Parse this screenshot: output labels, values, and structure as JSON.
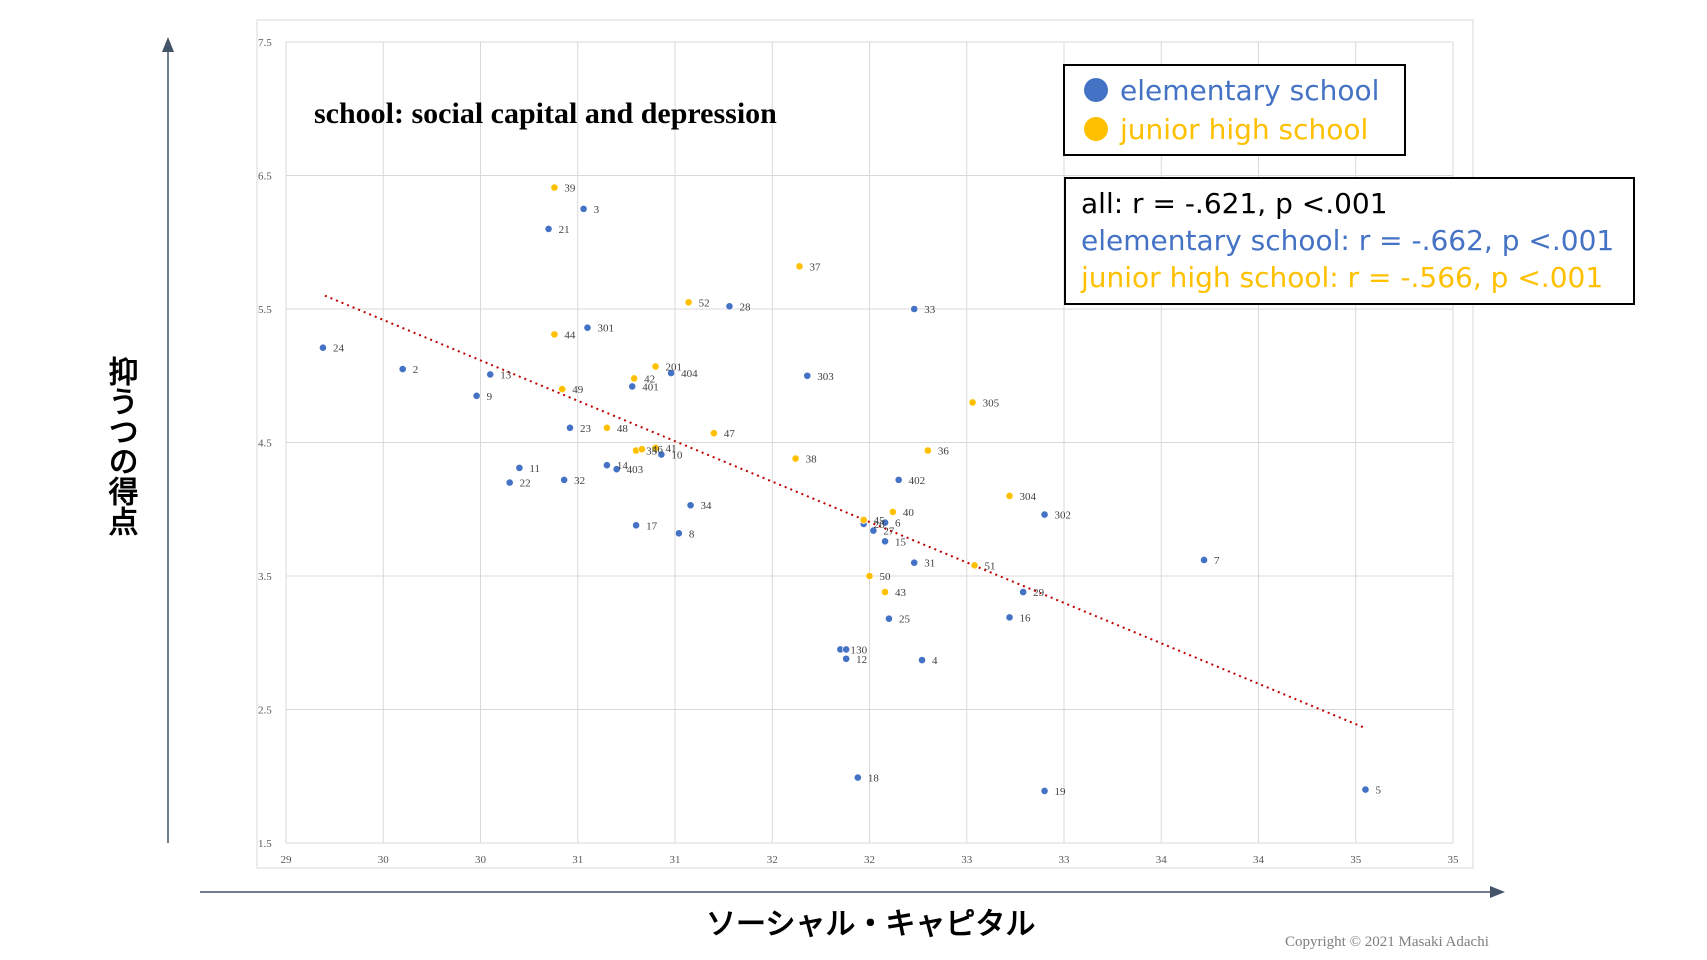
{
  "chart_data": {
    "type": "scatter",
    "title": "school: social capital and depression",
    "xlabel": "ソーシャル・キャピタル",
    "ylabel": "抑うつの得点",
    "x_tick_labels": [
      "29",
      "30",
      "30",
      "31",
      "31",
      "32",
      "32",
      "33",
      "33",
      "34",
      "34",
      "35",
      "35"
    ],
    "y_tick_labels": [
      "1.5",
      "2.5",
      "3.5",
      "4.5",
      "5.5",
      "6.5",
      "7.5"
    ],
    "xlim": [
      29,
      35
    ],
    "ylim": [
      1.5,
      7.5
    ],
    "grid": true,
    "legend_position": "top-right",
    "series": [
      {
        "name": "elementary school",
        "color": "#4472C4",
        "points": [
          {
            "label": "1",
            "x": 31.85,
            "y": 2.95
          },
          {
            "label": "2",
            "x": 29.6,
            "y": 5.05
          },
          {
            "label": "3",
            "x": 30.53,
            "y": 6.25
          },
          {
            "label": "4",
            "x": 32.27,
            "y": 2.87
          },
          {
            "label": "5",
            "x": 34.55,
            "y": 1.9
          },
          {
            "label": "6",
            "x": 32.08,
            "y": 3.9
          },
          {
            "label": "7",
            "x": 33.72,
            "y": 3.62
          },
          {
            "label": "8",
            "x": 31.02,
            "y": 3.82
          },
          {
            "label": "9",
            "x": 29.98,
            "y": 4.85
          },
          {
            "label": "10",
            "x": 30.93,
            "y": 4.41
          },
          {
            "label": "11",
            "x": 30.2,
            "y": 4.31
          },
          {
            "label": "12",
            "x": 31.88,
            "y": 2.88
          },
          {
            "label": "13",
            "x": 30.05,
            "y": 5.01
          },
          {
            "label": "14",
            "x": 30.65,
            "y": 4.33
          },
          {
            "label": "15",
            "x": 32.08,
            "y": 3.76
          },
          {
            "label": "16",
            "x": 32.72,
            "y": 3.19
          },
          {
            "label": "17",
            "x": 30.8,
            "y": 3.88
          },
          {
            "label": "18",
            "x": 31.94,
            "y": 1.99
          },
          {
            "label": "19",
            "x": 32.9,
            "y": 1.89
          },
          {
            "label": "21",
            "x": 30.35,
            "y": 6.1
          },
          {
            "label": "22",
            "x": 30.15,
            "y": 4.2
          },
          {
            "label": "23",
            "x": 30.46,
            "y": 4.61
          },
          {
            "label": "24",
            "x": 29.19,
            "y": 5.21
          },
          {
            "label": "25",
            "x": 32.1,
            "y": 3.18
          },
          {
            "label": "26",
            "x": 31.97,
            "y": 3.89
          },
          {
            "label": "27",
            "x": 32.02,
            "y": 3.84
          },
          {
            "label": "28",
            "x": 31.28,
            "y": 5.52
          },
          {
            "label": "29",
            "x": 32.79,
            "y": 3.38
          },
          {
            "label": "30",
            "x": 31.88,
            "y": 2.95
          },
          {
            "label": "31",
            "x": 32.23,
            "y": 3.6
          },
          {
            "label": "32",
            "x": 30.43,
            "y": 4.22
          },
          {
            "label": "33",
            "x": 32.23,
            "y": 5.5
          },
          {
            "label": "34",
            "x": 31.08,
            "y": 4.03
          },
          {
            "label": "301",
            "x": 30.55,
            "y": 5.36
          },
          {
            "label": "302",
            "x": 32.9,
            "y": 3.96
          },
          {
            "label": "303",
            "x": 31.68,
            "y": 5.0
          },
          {
            "label": "401",
            "x": 30.78,
            "y": 4.92
          },
          {
            "label": "402",
            "x": 32.15,
            "y": 4.22
          },
          {
            "label": "403",
            "x": 30.7,
            "y": 4.3
          },
          {
            "label": "404",
            "x": 30.98,
            "y": 5.02
          }
        ]
      },
      {
        "name": "junior high school",
        "color": "#FFC000",
        "points": [
          {
            "label": "35",
            "x": 30.8,
            "y": 4.44
          },
          {
            "label": "36",
            "x": 32.3,
            "y": 4.44
          },
          {
            "label": "37",
            "x": 31.64,
            "y": 5.82
          },
          {
            "label": "38",
            "x": 31.62,
            "y": 4.38
          },
          {
            "label": "39",
            "x": 30.38,
            "y": 6.41
          },
          {
            "label": "40",
            "x": 32.12,
            "y": 3.98
          },
          {
            "label": "41",
            "x": 30.9,
            "y": 4.46
          },
          {
            "label": "42",
            "x": 30.79,
            "y": 4.98
          },
          {
            "label": "43",
            "x": 32.08,
            "y": 3.38
          },
          {
            "label": "44",
            "x": 30.38,
            "y": 5.31
          },
          {
            "label": "45",
            "x": 31.97,
            "y": 3.92
          },
          {
            "label": "46",
            "x": 30.83,
            "y": 4.45
          },
          {
            "label": "47",
            "x": 31.2,
            "y": 4.57
          },
          {
            "label": "48",
            "x": 30.65,
            "y": 4.61
          },
          {
            "label": "49",
            "x": 30.42,
            "y": 4.9
          },
          {
            "label": "50",
            "x": 32.0,
            "y": 3.5
          },
          {
            "label": "51",
            "x": 32.54,
            "y": 3.58
          },
          {
            "label": "52",
            "x": 31.07,
            "y": 5.55
          },
          {
            "label": "201",
            "x": 30.9,
            "y": 5.07
          },
          {
            "label": "304",
            "x": 32.72,
            "y": 4.1
          },
          {
            "label": "305",
            "x": 32.53,
            "y": 4.8
          }
        ]
      }
    ],
    "trendline": {
      "color": "#C00000",
      "style": "dotted",
      "x": [
        29.2,
        34.55
      ],
      "y": [
        5.6,
        2.36
      ]
    },
    "annotations": {
      "all": "all: r = -.621, p <.001",
      "elementary": "elementary school: r = -.662, p <.001",
      "junior": "junior high school: r = -.566, p <.001"
    }
  },
  "copyright": "Copyright © 2021 Masaki Adachi"
}
